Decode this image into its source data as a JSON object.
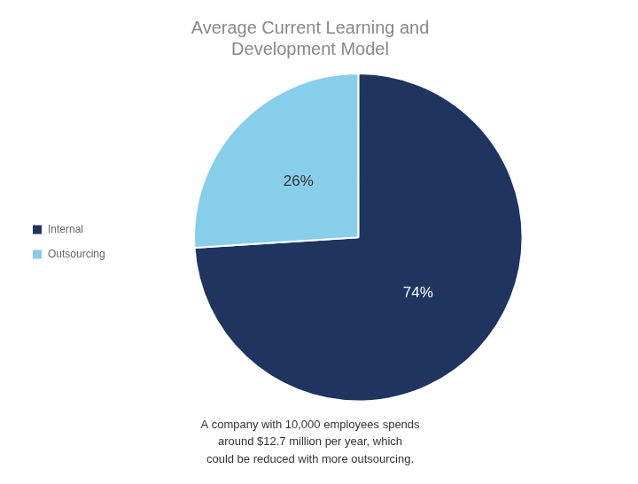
{
  "chart_data": {
    "type": "pie",
    "title": "Average Current Learning and\nDevelopment Model",
    "categories": [
      "Internal",
      "Outsourcing"
    ],
    "values": [
      74,
      26
    ],
    "value_labels": [
      "74%",
      "26%"
    ],
    "colors": [
      "#1f3560",
      "#87ceeb"
    ],
    "data_labels": true,
    "legend": "left",
    "annotation": "A company with 10,000 employees spends\naround $12.7 million per year, which\ncould be reduced with more outsourcing."
  }
}
